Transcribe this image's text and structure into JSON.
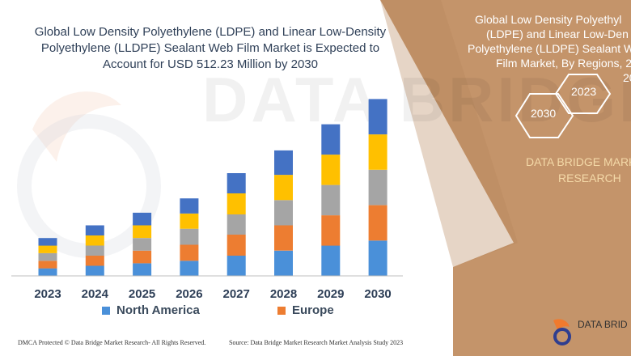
{
  "header": {
    "title": "Global Low Density Polyethylene (LDPE) and Linear Low-Density Polyethylene (LLDPE) Sealant Web Film Market is Expected to Account for USD 512.23 Million by 2030"
  },
  "right_panel": {
    "title_lines": [
      "Global Low Density Polyethyl",
      "(LDPE) and Linear Low-Den",
      "Polyethylene (LLDPE) Sealant W",
      "Film Market, By Regions, 202",
      "20"
    ],
    "hex_years": [
      "2023",
      "2030"
    ],
    "brand_lines": [
      "DATA BRIDGE MARK",
      "RESEARCH"
    ],
    "panel_color": "#c4946a"
  },
  "footer": {
    "left": "DMCA Protected © Data Bridge Market Research-  All Rights Reserved.",
    "right": "Source: Data Bridge Market Research  Market Analysis Study 2023"
  },
  "logo": {
    "text": "DATA BRID",
    "icon": "databridge-logo-icon"
  },
  "watermark": {
    "text": "DATA BRIDGE"
  },
  "legend": [
    {
      "label": "North America",
      "color": "#4a90d9"
    },
    {
      "label": "Europe",
      "color": "#ed7d31"
    }
  ],
  "chart_data": {
    "type": "bar",
    "stacked": true,
    "categories": [
      "2023",
      "2024",
      "2025",
      "2026",
      "2027",
      "2028",
      "2029",
      "2030"
    ],
    "series": [
      {
        "name": "North America",
        "color": "#4a90d9",
        "values": [
          9,
          12,
          15,
          18,
          24,
          30,
          36,
          42
        ]
      },
      {
        "color": "#ed7d31",
        "values": [
          9,
          12,
          15,
          19,
          25,
          30,
          36,
          42
        ]
      },
      {
        "color": "#a5a5a5",
        "values": [
          9,
          12,
          15,
          19,
          24,
          30,
          36,
          42
        ]
      },
      {
        "color": "#ffc000",
        "values": [
          9,
          12,
          15,
          18,
          25,
          30,
          36,
          42
        ]
      },
      {
        "color": "#4472c4",
        "values": [
          9,
          12,
          15,
          18,
          24,
          29,
          36,
          42
        ]
      }
    ],
    "ylim": [
      0,
      220
    ],
    "grid": false,
    "legend_position": "bottom",
    "title": "Global Low Density Polyethylene (LDPE) and Linear Low-Density Polyethylene (LLDPE) Sealant Web Film Market is Expected to Account for USD 512.23 Million by 2030",
    "xlabel": "",
    "ylabel": ""
  }
}
